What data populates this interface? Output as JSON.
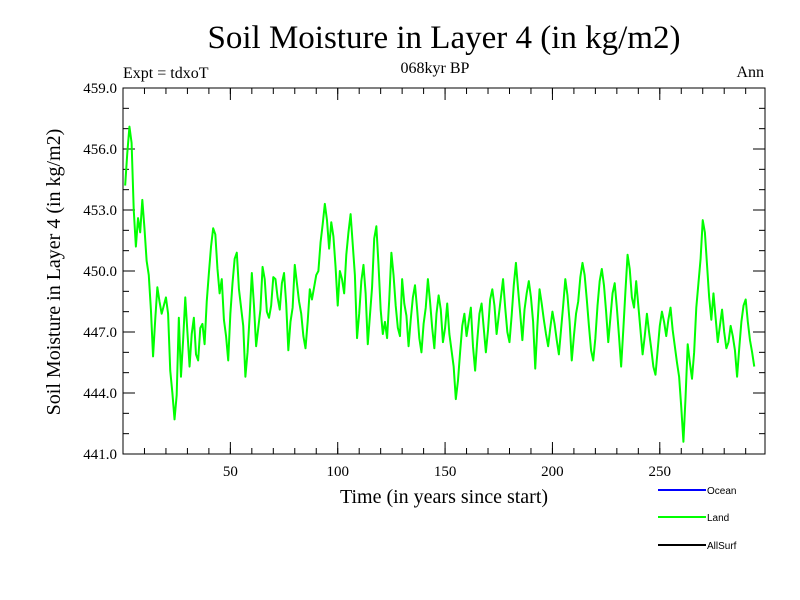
{
  "chart_data": {
    "type": "line",
    "title": "Soil Moisture in Layer 4 (in kg/m2)",
    "subtitle": "068kyr BP",
    "expt_label": "Expt = tdxoT",
    "season_label": "Ann",
    "xlabel": "Time (in years since start)",
    "ylabel": "Soil Moisture in Layer 4 (in kg/m2)",
    "xlim": [
      0,
      299
    ],
    "ylim": [
      441.0,
      459.0
    ],
    "x_ticks": [
      50,
      100,
      150,
      200,
      250
    ],
    "x_tick_labels": [
      "50",
      "100",
      "150",
      "200",
      "250"
    ],
    "y_ticks": [
      441,
      444,
      447,
      450,
      453,
      456,
      459
    ],
    "y_tick_labels": [
      "441.0",
      "444.0",
      "447.0",
      "450.0",
      "453.0",
      "456.0",
      "459.0"
    ],
    "series": [
      {
        "name": "Land",
        "color": "#00ff00",
        "x_start": 1,
        "x_step": 1,
        "values": [
          454.2,
          455.8,
          457.1,
          456.3,
          453.0,
          451.2,
          452.6,
          451.9,
          453.5,
          452.1,
          450.5,
          449.8,
          448.1,
          445.8,
          447.6,
          449.2,
          448.5,
          447.9,
          448.3,
          448.7,
          447.9,
          445.1,
          444.0,
          442.7,
          443.9,
          447.7,
          444.8,
          446.6,
          448.7,
          447.0,
          445.3,
          446.9,
          447.7,
          445.9,
          445.6,
          447.2,
          447.4,
          446.4,
          448.5,
          449.9,
          451.2,
          452.1,
          451.8,
          450.1,
          448.9,
          449.6,
          447.6,
          446.8,
          445.6,
          447.9,
          449.4,
          450.6,
          450.9,
          449.1,
          448.2,
          447.3,
          444.8,
          446.0,
          447.8,
          449.9,
          448.3,
          446.3,
          447.2,
          448.1,
          450.2,
          449.6,
          448.0,
          447.7,
          448.3,
          449.7,
          449.6,
          448.7,
          448.1,
          449.4,
          449.9,
          448.4,
          446.1,
          447.5,
          448.2,
          450.3,
          449.4,
          448.5,
          447.9,
          446.8,
          446.2,
          447.5,
          449.1,
          448.6,
          449.2,
          449.8,
          450.0,
          451.4,
          452.3,
          453.3,
          452.5,
          451.1,
          452.4,
          451.7,
          450.2,
          448.3,
          450.0,
          449.6,
          448.9,
          450.8,
          451.9,
          452.8,
          451.3,
          449.8,
          446.7,
          447.9,
          449.5,
          450.3,
          448.9,
          446.4,
          447.8,
          449.2,
          451.6,
          452.2,
          450.3,
          448.1,
          446.9,
          447.5,
          446.7,
          448.6,
          450.9,
          449.8,
          448.3,
          447.2,
          446.8,
          449.6,
          448.4,
          447.8,
          446.3,
          447.6,
          448.7,
          449.3,
          448.1,
          446.7,
          446.0,
          447.4,
          448.2,
          449.6,
          448.5,
          447.2,
          446.2,
          447.9,
          448.8,
          448.1,
          446.5,
          447.2,
          448.4,
          446.9,
          446.1,
          445.3,
          443.7,
          444.6,
          446.0,
          447.3,
          447.9,
          446.8,
          447.5,
          448.2,
          446.3,
          445.1,
          446.6,
          447.9,
          448.4,
          447.2,
          446.0,
          447.1,
          448.6,
          449.1,
          448.3,
          446.9,
          447.8,
          448.7,
          449.6,
          448.2,
          447.0,
          446.5,
          447.8,
          449.3,
          450.4,
          449.1,
          447.9,
          446.6,
          448.1,
          448.9,
          449.5,
          448.7,
          447.5,
          445.2,
          447.3,
          449.1,
          448.4,
          447.6,
          446.9,
          446.3,
          447.2,
          448.0,
          447.4,
          446.6,
          445.9,
          447.1,
          448.3,
          449.6,
          448.8,
          447.5,
          445.6,
          446.8,
          447.9,
          448.5,
          449.7,
          450.4,
          449.8,
          448.6,
          447.3,
          446.1,
          445.6,
          446.7,
          448.3,
          449.5,
          450.1,
          449.3,
          448.0,
          446.5,
          447.7,
          448.9,
          449.4,
          448.2,
          446.8,
          445.3,
          447.1,
          449.0,
          450.8,
          450.1,
          448.7,
          448.2,
          449.5,
          448.3,
          447.1,
          445.9,
          446.8,
          447.9,
          447.0,
          446.2,
          445.3,
          444.9,
          446.1,
          447.3,
          448.0,
          447.5,
          446.8,
          447.6,
          448.2,
          447.1,
          446.3,
          445.5,
          444.8,
          443.3,
          441.6,
          443.8,
          446.4,
          445.5,
          444.7,
          446.0,
          448.2,
          449.4,
          450.6,
          452.5,
          451.9,
          450.3,
          448.7,
          447.6,
          448.9,
          447.7,
          446.5,
          447.3,
          448.1,
          447.0,
          446.2,
          446.5,
          447.3,
          446.8,
          446.1,
          444.8,
          446.2,
          447.5,
          448.3,
          448.6,
          447.5,
          446.6,
          446.0,
          445.3
        ]
      }
    ],
    "legend": [
      {
        "name": "Ocean",
        "color": "#0000ff"
      },
      {
        "name": "Land",
        "color": "#00ff00"
      },
      {
        "name": "AllSurf",
        "color": "#000000"
      }
    ],
    "legend_position": "bottom-right"
  }
}
